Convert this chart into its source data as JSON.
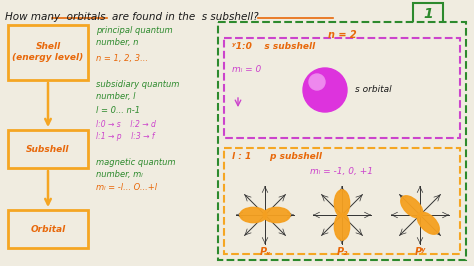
{
  "bg_color": "#f0ece0",
  "title_text": "How many orbitals are found in the s subshell?",
  "title_color": "#1a1a1a",
  "orange": "#f5a623",
  "orange_text": "#e8680a",
  "green": "#2d8a2d",
  "magenta": "#cc44cc",
  "dark": "#1a1a1a",
  "answer": "1",
  "box_shell_label": "Shell\n(energy level)",
  "box_subshell_label": "Subshell",
  "box_orbital_label": "Orbital",
  "desc1_line1": "principal quantum",
  "desc1_line2": "number, n",
  "desc1_line3": "n = 1, 2, 3...",
  "desc2_line1": "subsidiary quantum",
  "desc2_line2": "number, l",
  "desc2_line3": "l = 0... n-1",
  "desc2_magenta1": "l:0 → s    l:2 → d",
  "desc2_magenta2": "l:1 → p    l:3 → f",
  "desc3_line1": "magnetic quantum",
  "desc3_line2": "number, mₗ",
  "desc3_line3": "mₗ = -l... O...+l",
  "n2_label": "n = 2",
  "s_label": "ʸ1:0    s subshell",
  "ml0_label": "mₗ = 0",
  "s_orbital_label": "s orbital",
  "l1_label": "l : 1      p subshell",
  "ml_p_label": "mₗ = -1, 0, +1",
  "px_label": "Pₓ",
  "pz_label": "P₂",
  "py_label": "Pʸ"
}
